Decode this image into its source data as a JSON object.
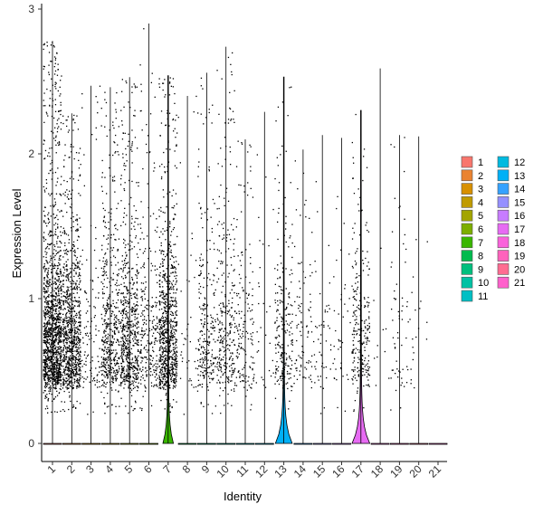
{
  "chart_data": {
    "type": "violin",
    "xlabel": "Identity",
    "ylabel": "Expression Level",
    "ylim": [
      0,
      3
    ],
    "yticks": [
      0,
      1,
      2,
      3
    ],
    "grid": false,
    "legend_position": "right",
    "legend_columns": 2,
    "categories": [
      "1",
      "2",
      "3",
      "4",
      "5",
      "6",
      "7",
      "8",
      "9",
      "10",
      "11",
      "12",
      "13",
      "14",
      "15",
      "16",
      "17",
      "18",
      "19",
      "20",
      "21"
    ],
    "colors": [
      "#F8766D",
      "#EA8331",
      "#D89000",
      "#C09B00",
      "#A3A500",
      "#7CAE00",
      "#39B600",
      "#00BB4E",
      "#00BF7D",
      "#00C1A3",
      "#00BFC4",
      "#00BAE0",
      "#00B0F6",
      "#35A2FF",
      "#9590FF",
      "#C77CFF",
      "#E76BF3",
      "#FA62DB",
      "#FF62BC",
      "#FF6C91",
      "#FF61CC"
    ],
    "series": [
      {
        "name": "1",
        "max": 2.78,
        "cells": 1400,
        "violin_width": 0
      },
      {
        "name": "2",
        "max": 2.28,
        "cells": 900,
        "violin_width": 0
      },
      {
        "name": "3",
        "max": 2.47,
        "cells": 110,
        "violin_width": 0
      },
      {
        "name": "4",
        "max": 2.46,
        "cells": 500,
        "violin_width": 0
      },
      {
        "name": "5",
        "max": 2.53,
        "cells": 650,
        "violin_width": 0
      },
      {
        "name": "6",
        "max": 2.9,
        "cells": 260,
        "violin_width": 0
      },
      {
        "name": "7",
        "max": 2.54,
        "cells": 850,
        "violin_width": 0.55
      },
      {
        "name": "8",
        "max": 2.4,
        "cells": 40,
        "violin_width": 0
      },
      {
        "name": "9",
        "max": 2.56,
        "cells": 260,
        "violin_width": 0
      },
      {
        "name": "10",
        "max": 2.74,
        "cells": 300,
        "violin_width": 0
      },
      {
        "name": "11",
        "max": 2.1,
        "cells": 160,
        "violin_width": 0
      },
      {
        "name": "12",
        "max": 2.29,
        "cells": 30,
        "violin_width": 0
      },
      {
        "name": "13",
        "max": 2.53,
        "cells": 220,
        "violin_width": 0.9
      },
      {
        "name": "14",
        "max": 2.03,
        "cells": 90,
        "violin_width": 0
      },
      {
        "name": "15",
        "max": 2.13,
        "cells": 50,
        "violin_width": 0
      },
      {
        "name": "16",
        "max": 2.11,
        "cells": 40,
        "violin_width": 0
      },
      {
        "name": "17",
        "max": 2.3,
        "cells": 240,
        "violin_width": 0.95
      },
      {
        "name": "18",
        "max": 2.59,
        "cells": 10,
        "violin_width": 0
      },
      {
        "name": "19",
        "max": 2.13,
        "cells": 60,
        "violin_width": 0
      },
      {
        "name": "20",
        "max": 2.12,
        "cells": 20,
        "violin_width": 0
      },
      {
        "name": "21",
        "max": 0,
        "cells": 0,
        "violin_width": 0
      }
    ]
  }
}
